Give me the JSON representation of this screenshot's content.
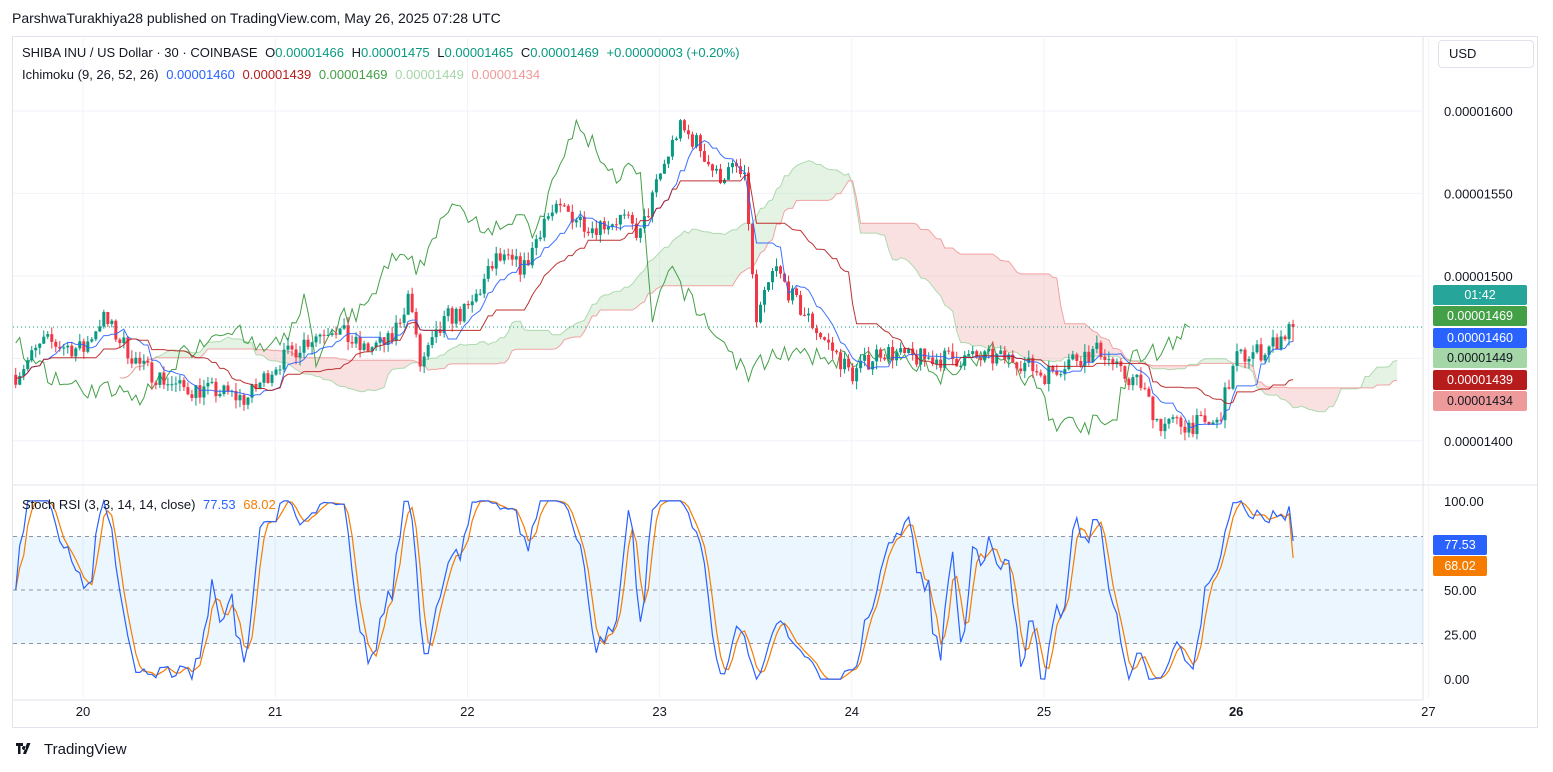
{
  "header": {
    "attribution": "ParshwaTurakhiya28 published on TradingView.com, May 26, 2025 07:28 UTC"
  },
  "legend": {
    "symbol": "SHIBA INU / US Dollar · 30 · COINBASE",
    "o_label": "O",
    "o_value": "0.00001466",
    "h_label": "H",
    "h_value": "0.00001475",
    "l_label": "L",
    "l_value": "0.00001465",
    "c_label": "C",
    "c_value": "0.00001469",
    "change": "+0.00000003 (+0.20%)",
    "ichimoku_label": "Ichimoku (9, 26, 52, 26)",
    "ichimoku_values": [
      "0.00001460",
      "0.00001439",
      "0.00001469",
      "0.00001449",
      "0.00001434"
    ],
    "stoch_label": "Stoch RSI (3, 3, 14, 14, close)",
    "stoch_k": "77.53",
    "stoch_d": "68.02"
  },
  "currency": "USD",
  "price_tags": [
    {
      "text": "01:42",
      "color": "#26a69a"
    },
    {
      "text": "0.00001469",
      "color": "#43a047"
    },
    {
      "text": "0.00001460",
      "color": "#2962ff"
    },
    {
      "text": "0.00001449",
      "color": "#a5d6a7",
      "text_color": "#131722"
    },
    {
      "text": "0.00001439",
      "color": "#b71c1c"
    },
    {
      "text": "0.00001434",
      "color": "#ef9a9a",
      "text_color": "#131722"
    },
    {
      "text": "77.53",
      "color": "#2962ff"
    },
    {
      "text": "68.02",
      "color": "#f57c00"
    }
  ],
  "footer": {
    "brand": "TradingView"
  },
  "colors": {
    "up": "#089981",
    "down": "#f23645",
    "conversion": "#2962ff",
    "base": "#b71c1c",
    "lagging": "#43a047",
    "span_a": "#a5d6a7",
    "span_b": "#ef9a9a",
    "stoch_k": "#2962ff",
    "stoch_d": "#f57c00"
  },
  "chart_data": [
    {
      "type": "candlestick",
      "title": "SHIBA INU / US Dollar · 30 · COINBASE",
      "x_ticks": [
        "20",
        "21",
        "22",
        "23",
        "24",
        "25",
        "26",
        "27"
      ],
      "y_ticks": [
        "0.00001600",
        "0.00001550",
        "0.00001500",
        "0.00001400"
      ],
      "ylim": [
        1.375e-05,
        1.62e-05
      ],
      "last_close": 1.469e-05,
      "grid": true,
      "key_prices": {
        "y_20": 1.455e-05,
        "y_20_5": 1.432e-05,
        "y_21": 1.446e-05,
        "y_21_3": 1.47e-05,
        "y_21_7": 1.49e-05,
        "y_22": 1.478e-05,
        "y_22_3": 1.505e-05,
        "y_22_5": 1.54e-05,
        "y_22_8": 1.535e-05,
        "y_23": 1.56e-05,
        "y_23_2": 1.58e-05,
        "y_23_45": 1.555e-05,
        "y_23_5": 1.47e-05,
        "y_23_8": 1.47e-05,
        "y_24": 1.44e-05,
        "y_24_5": 1.45e-05,
        "y_25": 1.44e-05,
        "y_25_3": 1.455e-05,
        "y_25_6": 1.41e-05,
        "y_25_9": 1.41e-05,
        "y_26": 1.45e-05,
        "y_26_3": 1.469e-05
      }
    },
    {
      "type": "line",
      "title": "Stoch RSI (3, 3, 14, 14, close)",
      "y_ticks": [
        "100.00",
        "50.00",
        "25.00",
        "0.00"
      ],
      "ylim": [
        -5,
        105
      ],
      "bands": [
        20,
        80
      ],
      "series": [
        {
          "name": "K",
          "last": 77.53
        },
        {
          "name": "D",
          "last": 68.02
        }
      ]
    }
  ]
}
